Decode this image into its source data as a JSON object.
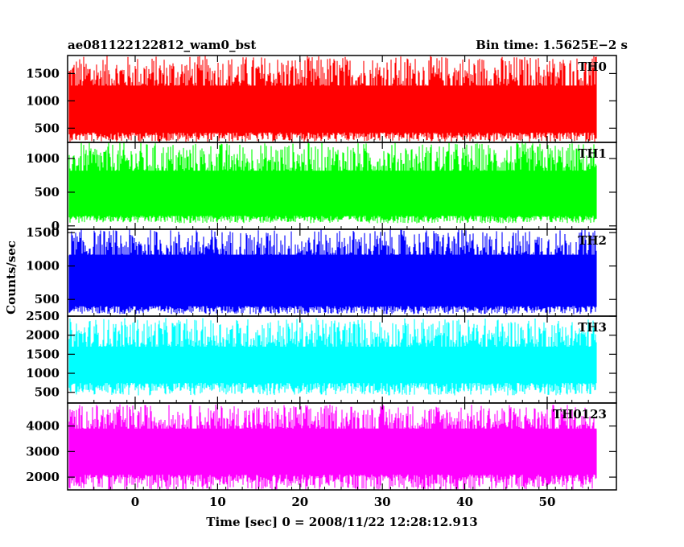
{
  "header": {
    "title": "ae081122122812_wam0_bst",
    "bin_time": "Bin time: 1.5625E−2 s"
  },
  "chart_data": {
    "type": "line",
    "xlabel": "Time [sec] 0 = 2008/11/22 12:28:12.913",
    "ylabel": "Counts/sec",
    "xlim": [
      -8.2,
      58.4
    ],
    "x_ticks": [
      0,
      10,
      20,
      30,
      40,
      50
    ],
    "x_tick_labels": [
      "0",
      "10",
      "20",
      "30",
      "40",
      "50"
    ],
    "data_range": [
      -8.0,
      56.0
    ],
    "panels": [
      {
        "name": "TH0",
        "color": "#ff0000",
        "ylim": [
          240,
          1830
        ],
        "ticks": [
          500,
          1000,
          1500
        ],
        "tick_labels": [
          "500",
          "1000",
          "1500"
        ],
        "band": [
          430,
          1280
        ],
        "peaks": [
          1200,
          1830
        ],
        "troughs": [
          250,
          420
        ]
      },
      {
        "name": "TH1",
        "color": "#00ff00",
        "ylim": [
          -50,
          1240
        ],
        "ticks": [
          0,
          500,
          1000
        ],
        "tick_labels": [
          "0",
          "500",
          "1000"
        ],
        "band": [
          150,
          820
        ],
        "peaks": [
          760,
          1240
        ],
        "troughs": [
          40,
          150
        ]
      },
      {
        "name": "TH2",
        "color": "#0000ff",
        "ylim": [
          250,
          1550
        ],
        "ticks": [
          500,
          1000,
          1500
        ],
        "tick_labels": [
          "500",
          "1000",
          "1500"
        ],
        "band": [
          400,
          1170
        ],
        "peaks": [
          1100,
          1550
        ],
        "troughs": [
          280,
          400
        ]
      },
      {
        "name": "TH3",
        "color": "#00ffff",
        "ylim": [
          220,
          2500
        ],
        "ticks": [
          500,
          1000,
          1500,
          2000,
          2500
        ],
        "tick_labels": [
          "500",
          "1000",
          "1500",
          "2000",
          "2500"
        ],
        "band": [
          750,
          1700
        ],
        "peaks": [
          1650,
          2450
        ],
        "troughs": [
          420,
          750
        ]
      },
      {
        "name": "TH0123",
        "color": "#ff00ff",
        "ylim": [
          1500,
          4900
        ],
        "ticks": [
          2000,
          3000,
          4000
        ],
        "tick_labels": [
          "2000",
          "3000",
          "4000"
        ],
        "band": [
          2100,
          3900
        ],
        "peaks": [
          3800,
          4850
        ],
        "troughs": [
          1500,
          2100
        ]
      }
    ]
  }
}
